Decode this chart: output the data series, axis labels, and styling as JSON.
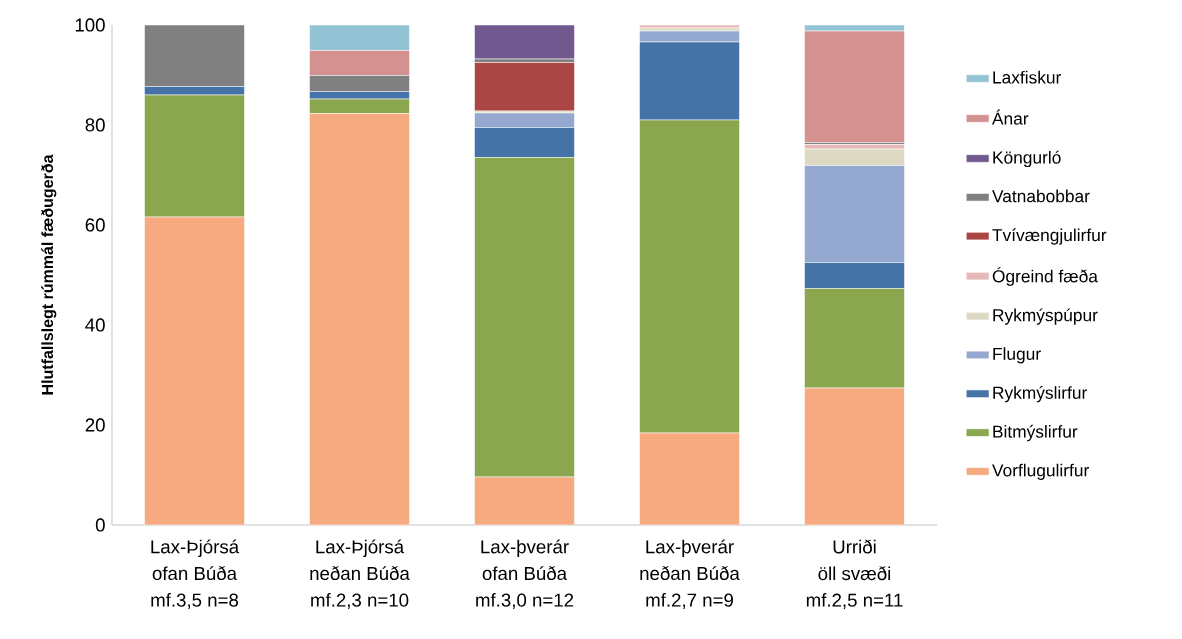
{
  "chart_data": {
    "type": "bar",
    "stacked": true,
    "ylabel": "Hlutfallslegt rúmmál fæðugerða",
    "categories": [
      "Lax-Þjórsá\nofan Búða\nmf.3,5 n=8",
      "Lax-Þjórsá\nneðan Búða\nmf.2,3 n=10",
      "Lax-þverár\nofan Búða\nmf.3,0 n=12",
      "Lax-þverár\nneðan Búða\nmf.2,7 n=9",
      "Urriði\nöll svæði\nmf.2,5 n=11"
    ],
    "ylim": [
      0,
      100
    ],
    "yticks": [
      0,
      20,
      40,
      60,
      80,
      100
    ],
    "grid": false,
    "legend": "right",
    "series": [
      {
        "name": "Vorflugulirfur",
        "color": "#f7aa80",
        "values": [
          61.6,
          82.3,
          9.6,
          18.4,
          27.4
        ]
      },
      {
        "name": "Bitmýslirfur",
        "color": "#8aa64e",
        "values": [
          24.4,
          2.9,
          63.9,
          62.6,
          19.9
        ]
      },
      {
        "name": "Rykmýslirfur",
        "color": "#4573a7",
        "values": [
          1.7,
          1.5,
          6.0,
          15.6,
          5.2
        ]
      },
      {
        "name": "Flugur",
        "color": "#95a9d0",
        "values": [
          null,
          null,
          2.9,
          2.2,
          19.4
        ]
      },
      {
        "name": "Rykmýspúpur",
        "color": "#ddd9c3",
        "values": [
          null,
          null,
          0.4,
          0.6,
          3.3
        ]
      },
      {
        "name": "Ógreind fæða",
        "color": "#e6b9b8",
        "values": [
          null,
          null,
          null,
          0.6,
          0.9
        ]
      },
      {
        "name": "Tvívængjulirfur",
        "color": "#aa4744",
        "values": [
          null,
          null,
          9.7,
          null,
          null
        ]
      },
      {
        "name": "Vatnabobbar",
        "color": "#808080",
        "values": [
          12.3,
          3.2,
          0.7,
          null,
          0.4
        ]
      },
      {
        "name": "Köngurló",
        "color": "#71598f",
        "values": [
          null,
          null,
          6.8,
          null,
          null
        ]
      },
      {
        "name": "Ánar",
        "color": "#d39190",
        "values": [
          null,
          5.0,
          null,
          null,
          22.3
        ]
      },
      {
        "name": "Laxfiskur",
        "color": "#93c3d4",
        "values": [
          null,
          5.1,
          null,
          null,
          1.2
        ]
      }
    ]
  }
}
